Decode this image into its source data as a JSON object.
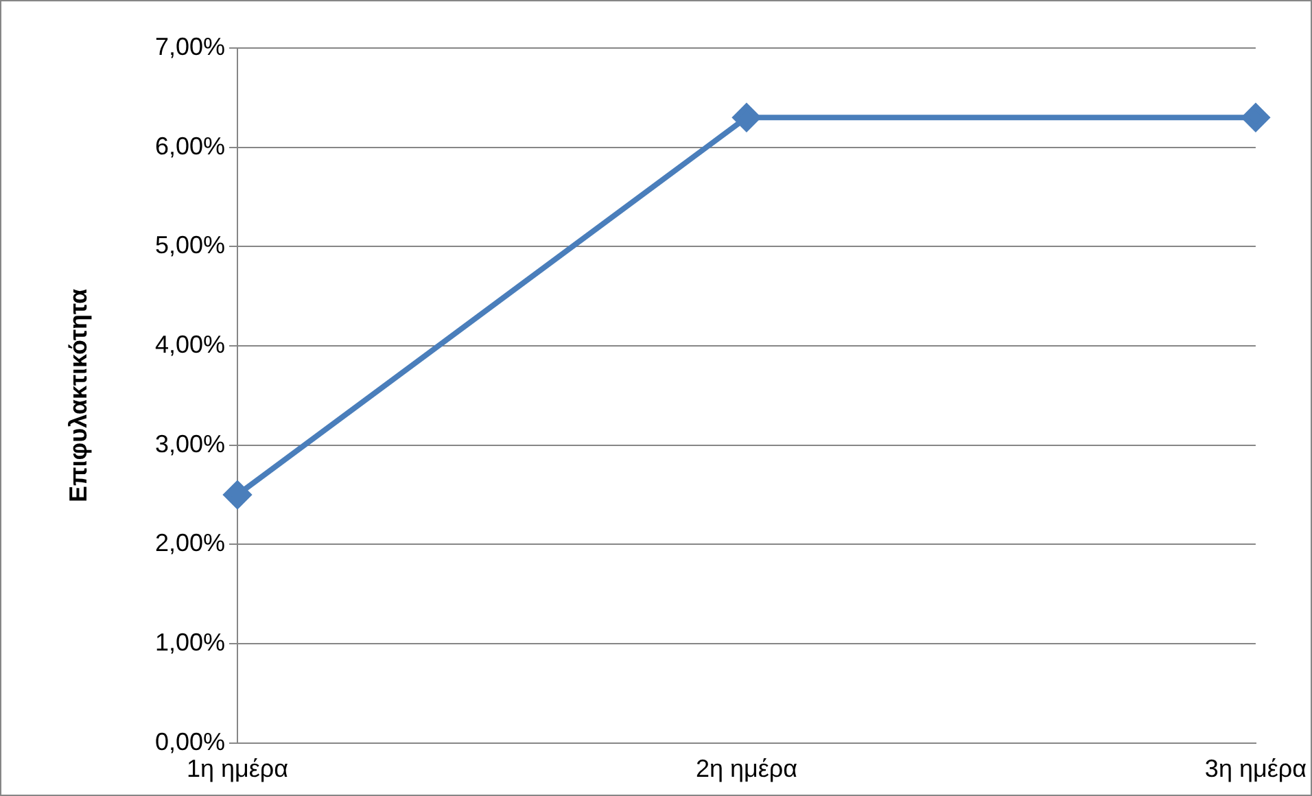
{
  "chart_data": {
    "type": "line",
    "ylabel": "Επιφυλακτικότητα",
    "categories": [
      "1η ημέρα",
      "2η ημέρα",
      "3η ημέρα"
    ],
    "series": [
      {
        "color": "#4a7ebb",
        "values": [
          2.5,
          6.3,
          6.3
        ]
      }
    ],
    "ylim": [
      0,
      7
    ],
    "yticks": [
      {
        "value": 0,
        "label": "0,00%"
      },
      {
        "value": 1,
        "label": "1,00%"
      },
      {
        "value": 2,
        "label": "2,00%"
      },
      {
        "value": 3,
        "label": "3,00%"
      },
      {
        "value": 4,
        "label": "4,00%"
      },
      {
        "value": 5,
        "label": "5,00%"
      },
      {
        "value": 6,
        "label": "6,00%"
      },
      {
        "value": 7,
        "label": "7,00%"
      }
    ],
    "grid": "y",
    "marker": "diamond",
    "line_style": "solid",
    "legend": false
  }
}
